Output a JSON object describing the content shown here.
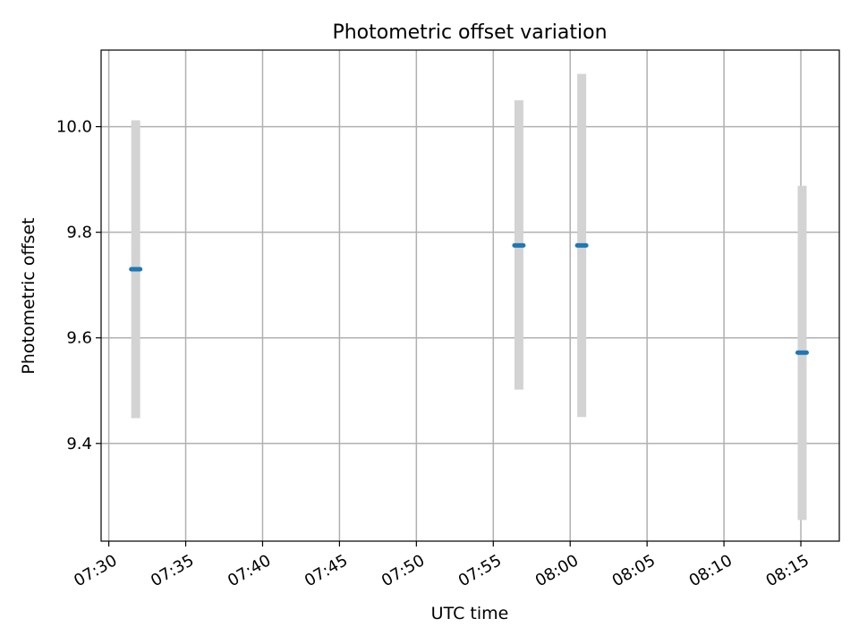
{
  "chart_data": {
    "type": "scatter",
    "title": "Photometric offset variation",
    "xlabel": "UTC time",
    "ylabel": "Photometric offset",
    "x_ticks": [
      "07:30",
      "07:35",
      "07:40",
      "07:45",
      "07:50",
      "07:55",
      "08:00",
      "08:05",
      "08:10",
      "08:15"
    ],
    "y_ticks": [
      "9.4",
      "9.6",
      "9.8",
      "10.0"
    ],
    "xlim": [
      "07:29.5",
      "08:17.5"
    ],
    "ylim": [
      9.215,
      10.145
    ],
    "grid": true,
    "points": [
      {
        "x": "07:31:45",
        "y": 9.73,
        "ylow": 9.448,
        "yhigh": 10.012
      },
      {
        "x": "07:56:40",
        "y": 9.775,
        "ylow": 9.502,
        "yhigh": 10.05
      },
      {
        "x": "08:00:45",
        "y": 9.775,
        "ylow": 9.45,
        "yhigh": 10.1
      },
      {
        "x": "08:15:05",
        "y": 9.572,
        "ylow": 9.255,
        "yhigh": 9.888
      }
    ],
    "colors": {
      "marker": "#1f77b4",
      "errorbar": "#d3d3d3"
    }
  }
}
